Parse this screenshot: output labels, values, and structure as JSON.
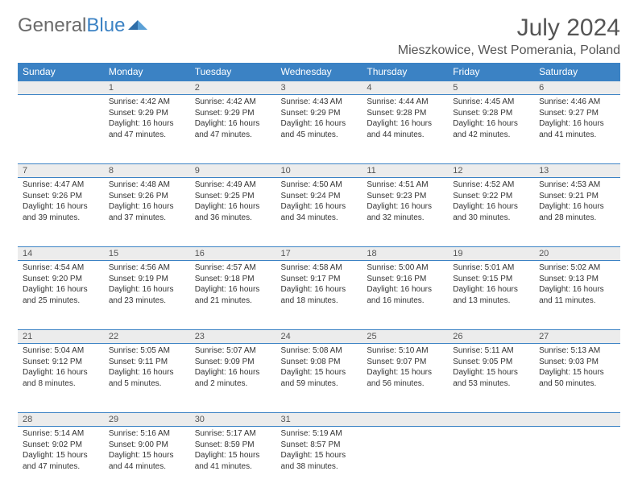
{
  "logo": {
    "text1": "General",
    "text2": "Blue"
  },
  "title": "July 2024",
  "location": "Mieszkowice, West Pomerania, Poland",
  "colors": {
    "header_bg": "#3b82c4",
    "header_text": "#ffffff",
    "daynum_bg": "#ececec",
    "rule": "#3b82c4",
    "body_text": "#333333",
    "logo_gray": "#6b6b6b",
    "logo_blue": "#3b82c4"
  },
  "daysOfWeek": [
    "Sunday",
    "Monday",
    "Tuesday",
    "Wednesday",
    "Thursday",
    "Friday",
    "Saturday"
  ],
  "weeks": [
    [
      {
        "num": "",
        "sunrise": "",
        "sunset": "",
        "daylight": ""
      },
      {
        "num": "1",
        "sunrise": "Sunrise: 4:42 AM",
        "sunset": "Sunset: 9:29 PM",
        "daylight": "Daylight: 16 hours and 47 minutes."
      },
      {
        "num": "2",
        "sunrise": "Sunrise: 4:42 AM",
        "sunset": "Sunset: 9:29 PM",
        "daylight": "Daylight: 16 hours and 47 minutes."
      },
      {
        "num": "3",
        "sunrise": "Sunrise: 4:43 AM",
        "sunset": "Sunset: 9:29 PM",
        "daylight": "Daylight: 16 hours and 45 minutes."
      },
      {
        "num": "4",
        "sunrise": "Sunrise: 4:44 AM",
        "sunset": "Sunset: 9:28 PM",
        "daylight": "Daylight: 16 hours and 44 minutes."
      },
      {
        "num": "5",
        "sunrise": "Sunrise: 4:45 AM",
        "sunset": "Sunset: 9:28 PM",
        "daylight": "Daylight: 16 hours and 42 minutes."
      },
      {
        "num": "6",
        "sunrise": "Sunrise: 4:46 AM",
        "sunset": "Sunset: 9:27 PM",
        "daylight": "Daylight: 16 hours and 41 minutes."
      }
    ],
    [
      {
        "num": "7",
        "sunrise": "Sunrise: 4:47 AM",
        "sunset": "Sunset: 9:26 PM",
        "daylight": "Daylight: 16 hours and 39 minutes."
      },
      {
        "num": "8",
        "sunrise": "Sunrise: 4:48 AM",
        "sunset": "Sunset: 9:26 PM",
        "daylight": "Daylight: 16 hours and 37 minutes."
      },
      {
        "num": "9",
        "sunrise": "Sunrise: 4:49 AM",
        "sunset": "Sunset: 9:25 PM",
        "daylight": "Daylight: 16 hours and 36 minutes."
      },
      {
        "num": "10",
        "sunrise": "Sunrise: 4:50 AM",
        "sunset": "Sunset: 9:24 PM",
        "daylight": "Daylight: 16 hours and 34 minutes."
      },
      {
        "num": "11",
        "sunrise": "Sunrise: 4:51 AM",
        "sunset": "Sunset: 9:23 PM",
        "daylight": "Daylight: 16 hours and 32 minutes."
      },
      {
        "num": "12",
        "sunrise": "Sunrise: 4:52 AM",
        "sunset": "Sunset: 9:22 PM",
        "daylight": "Daylight: 16 hours and 30 minutes."
      },
      {
        "num": "13",
        "sunrise": "Sunrise: 4:53 AM",
        "sunset": "Sunset: 9:21 PM",
        "daylight": "Daylight: 16 hours and 28 minutes."
      }
    ],
    [
      {
        "num": "14",
        "sunrise": "Sunrise: 4:54 AM",
        "sunset": "Sunset: 9:20 PM",
        "daylight": "Daylight: 16 hours and 25 minutes."
      },
      {
        "num": "15",
        "sunrise": "Sunrise: 4:56 AM",
        "sunset": "Sunset: 9:19 PM",
        "daylight": "Daylight: 16 hours and 23 minutes."
      },
      {
        "num": "16",
        "sunrise": "Sunrise: 4:57 AM",
        "sunset": "Sunset: 9:18 PM",
        "daylight": "Daylight: 16 hours and 21 minutes."
      },
      {
        "num": "17",
        "sunrise": "Sunrise: 4:58 AM",
        "sunset": "Sunset: 9:17 PM",
        "daylight": "Daylight: 16 hours and 18 minutes."
      },
      {
        "num": "18",
        "sunrise": "Sunrise: 5:00 AM",
        "sunset": "Sunset: 9:16 PM",
        "daylight": "Daylight: 16 hours and 16 minutes."
      },
      {
        "num": "19",
        "sunrise": "Sunrise: 5:01 AM",
        "sunset": "Sunset: 9:15 PM",
        "daylight": "Daylight: 16 hours and 13 minutes."
      },
      {
        "num": "20",
        "sunrise": "Sunrise: 5:02 AM",
        "sunset": "Sunset: 9:13 PM",
        "daylight": "Daylight: 16 hours and 11 minutes."
      }
    ],
    [
      {
        "num": "21",
        "sunrise": "Sunrise: 5:04 AM",
        "sunset": "Sunset: 9:12 PM",
        "daylight": "Daylight: 16 hours and 8 minutes."
      },
      {
        "num": "22",
        "sunrise": "Sunrise: 5:05 AM",
        "sunset": "Sunset: 9:11 PM",
        "daylight": "Daylight: 16 hours and 5 minutes."
      },
      {
        "num": "23",
        "sunrise": "Sunrise: 5:07 AM",
        "sunset": "Sunset: 9:09 PM",
        "daylight": "Daylight: 16 hours and 2 minutes."
      },
      {
        "num": "24",
        "sunrise": "Sunrise: 5:08 AM",
        "sunset": "Sunset: 9:08 PM",
        "daylight": "Daylight: 15 hours and 59 minutes."
      },
      {
        "num": "25",
        "sunrise": "Sunrise: 5:10 AM",
        "sunset": "Sunset: 9:07 PM",
        "daylight": "Daylight: 15 hours and 56 minutes."
      },
      {
        "num": "26",
        "sunrise": "Sunrise: 5:11 AM",
        "sunset": "Sunset: 9:05 PM",
        "daylight": "Daylight: 15 hours and 53 minutes."
      },
      {
        "num": "27",
        "sunrise": "Sunrise: 5:13 AM",
        "sunset": "Sunset: 9:03 PM",
        "daylight": "Daylight: 15 hours and 50 minutes."
      }
    ],
    [
      {
        "num": "28",
        "sunrise": "Sunrise: 5:14 AM",
        "sunset": "Sunset: 9:02 PM",
        "daylight": "Daylight: 15 hours and 47 minutes."
      },
      {
        "num": "29",
        "sunrise": "Sunrise: 5:16 AM",
        "sunset": "Sunset: 9:00 PM",
        "daylight": "Daylight: 15 hours and 44 minutes."
      },
      {
        "num": "30",
        "sunrise": "Sunrise: 5:17 AM",
        "sunset": "Sunset: 8:59 PM",
        "daylight": "Daylight: 15 hours and 41 minutes."
      },
      {
        "num": "31",
        "sunrise": "Sunrise: 5:19 AM",
        "sunset": "Sunset: 8:57 PM",
        "daylight": "Daylight: 15 hours and 38 minutes."
      },
      {
        "num": "",
        "sunrise": "",
        "sunset": "",
        "daylight": ""
      },
      {
        "num": "",
        "sunrise": "",
        "sunset": "",
        "daylight": ""
      },
      {
        "num": "",
        "sunrise": "",
        "sunset": "",
        "daylight": ""
      }
    ]
  ]
}
